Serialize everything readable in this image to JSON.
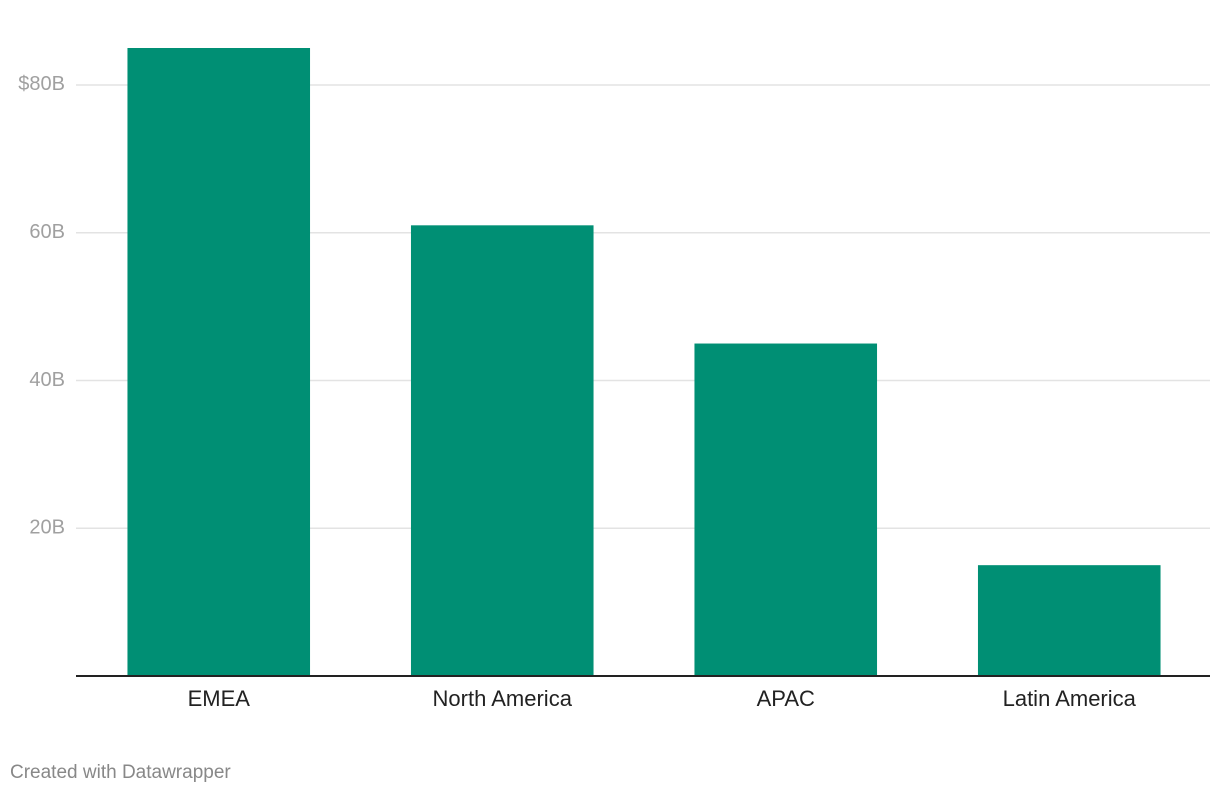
{
  "chart_data": {
    "type": "bar",
    "categories": [
      "EMEA",
      "North America",
      "APAC",
      "Latin America"
    ],
    "values": [
      85,
      61,
      45,
      15
    ],
    "color": "#008f74",
    "ylim": [
      0,
      85
    ],
    "yticks": [
      {
        "value": 20,
        "label": "20B"
      },
      {
        "value": 40,
        "label": "40B"
      },
      {
        "value": 60,
        "label": "60B"
      },
      {
        "value": 80,
        "label": "$80B"
      }
    ],
    "grid": true,
    "footer": "Created with Datawrapper"
  }
}
